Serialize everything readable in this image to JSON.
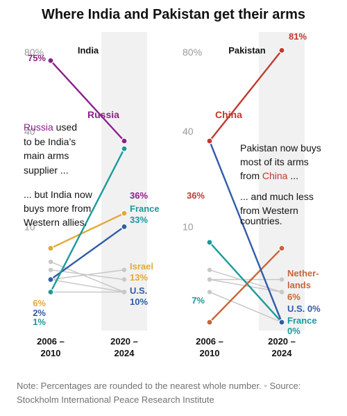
{
  "title": "Where India and Pakistan get their arms",
  "colors": {
    "russia": "#8b1f8b",
    "france": "#1a9a9a",
    "israel": "#e0a93a",
    "us": "#2f5ca8",
    "china": "#c0392b",
    "netherlands": "#c8643a",
    "other": "#c8c8c8",
    "band": "#f1f1f1"
  },
  "chart_data": [
    {
      "type": "line",
      "title": "India",
      "x": [
        "2006 – 2010",
        "2020 – 2024"
      ],
      "ylim": [
        0,
        80
      ],
      "scale": "sqrt",
      "yticks": [
        "10",
        "40",
        "80%"
      ],
      "series": [
        {
          "name": "Russia",
          "key": "russia",
          "values": [
            75,
            36
          ],
          "start_label": "75%",
          "end_label": "36%"
        },
        {
          "name": "France",
          "key": "france",
          "values": [
            1,
            33
          ],
          "start_label": "1%",
          "end_label": "33%"
        },
        {
          "name": "Israel",
          "key": "israel",
          "values": [
            6,
            13
          ],
          "start_label": "6%",
          "end_label": "13%"
        },
        {
          "name": "U.S.",
          "key": "us",
          "values": [
            2,
            10
          ],
          "start_label": "2%",
          "end_label": "10%"
        }
      ],
      "other_series": [
        [
          3,
          2
        ],
        [
          4,
          1
        ],
        [
          2,
          3
        ],
        [
          1,
          1
        ],
        [
          2,
          1
        ]
      ],
      "annotations": [
        {
          "parts": [
            {
              "text": "Russia",
              "key": "russia"
            },
            {
              "text": " used"
            }
          ]
        },
        {
          "parts": [
            {
              "text": "to be India’s"
            }
          ]
        },
        {
          "parts": [
            {
              "text": "main arms"
            }
          ]
        },
        {
          "parts": [
            {
              "text": "supplier ..."
            }
          ]
        },
        {
          "parts": [
            {
              "text": "... but India now"
            }
          ]
        },
        {
          "parts": [
            {
              "text": "buys more from"
            }
          ]
        },
        {
          "parts": [
            {
              "text": "Western allies."
            }
          ]
        }
      ]
    },
    {
      "type": "line",
      "title": "Pakistan",
      "x": [
        "2006 – 2010",
        "2020 – 2024"
      ],
      "ylim": [
        0,
        80
      ],
      "scale": "sqrt",
      "yticks": [
        "10",
        "40",
        "80%"
      ],
      "series": [
        {
          "name": "China",
          "key": "china",
          "values": [
            36,
            81
          ],
          "start_label": "36%",
          "end_label": "81%"
        },
        {
          "name": "U.S.",
          "key": "us",
          "values": [
            36,
            0
          ],
          "start_label": "",
          "end_label": "0%"
        },
        {
          "name": "Nether-lands",
          "key": "netherlands",
          "values": [
            0,
            6
          ],
          "start_label": "",
          "end_label": "6%"
        },
        {
          "name": "France",
          "key": "france",
          "values": [
            7,
            0
          ],
          "start_label": "7%",
          "end_label": "0%"
        }
      ],
      "other_series": [
        [
          3,
          1
        ],
        [
          2,
          2
        ],
        [
          1,
          0
        ],
        [
          2,
          1
        ]
      ],
      "annotations": [
        {
          "parts": [
            {
              "text": "Pakistan now buys"
            }
          ]
        },
        {
          "parts": [
            {
              "text": "most of its arms"
            }
          ]
        },
        {
          "parts": [
            {
              "text": "from "
            },
            {
              "text": "China",
              "key": "china"
            },
            {
              "text": " ..."
            }
          ]
        },
        {
          "parts": [
            {
              "text": "... and much less"
            }
          ]
        },
        {
          "parts": [
            {
              "text": "from Western"
            }
          ]
        },
        {
          "parts": [
            {
              "text": "countries."
            }
          ]
        }
      ]
    }
  ],
  "note": {
    "text": "Note: Percentages are rounded to the nearest whole number.",
    "separator": "•",
    "source": "Source: Stockholm International Peace Research Institute"
  }
}
